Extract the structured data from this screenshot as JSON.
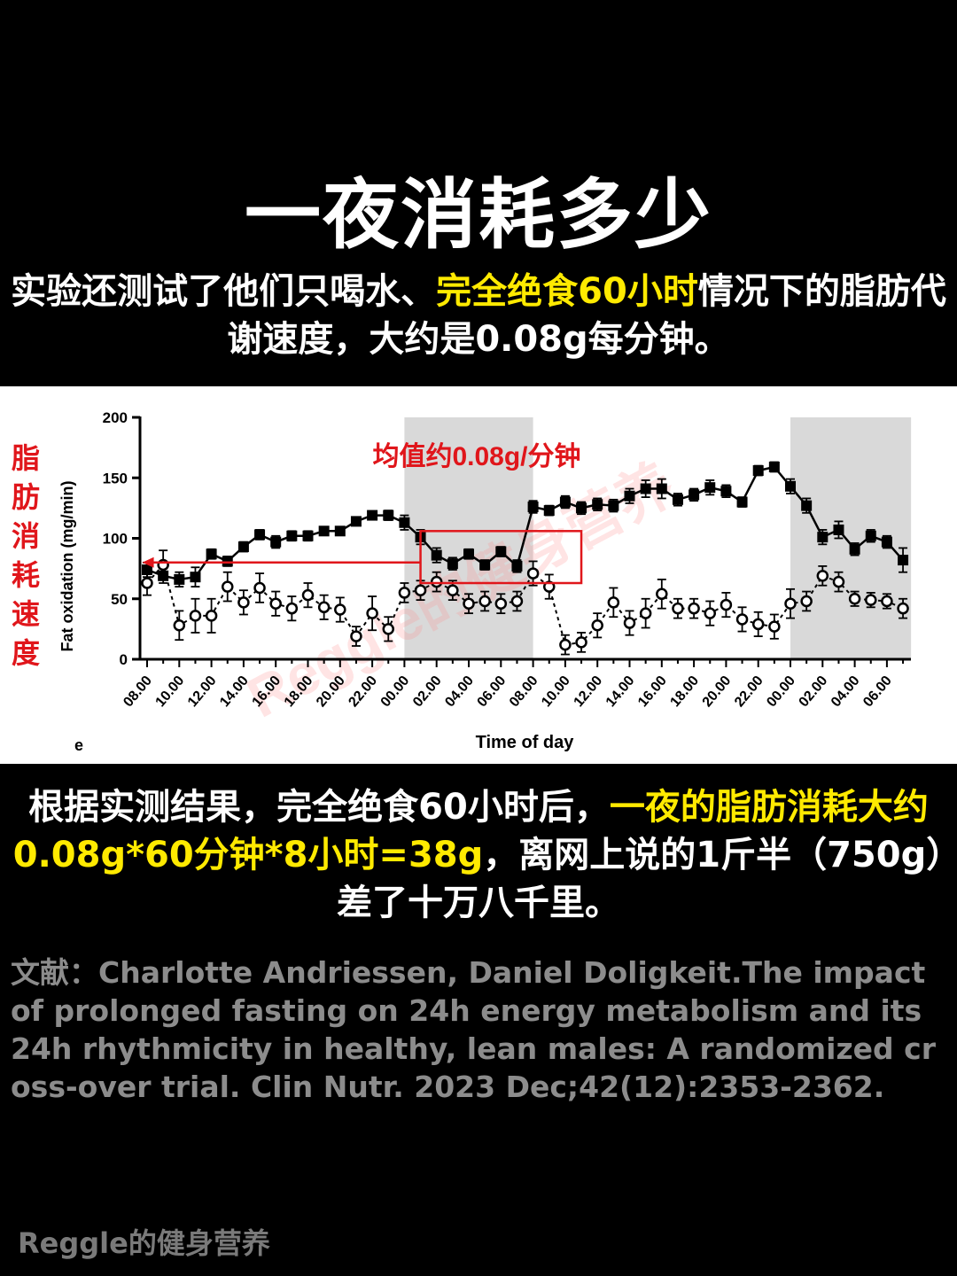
{
  "header": {
    "title": "一夜消耗多少",
    "intro_a": "实验还测试了他们只喝水、",
    "intro_highlight": "完全绝食60小时",
    "intro_b": "情况下的脂肪代谢速度，大约是0.08g每分钟。"
  },
  "chart_data": {
    "type": "line",
    "ylabel": "Fat oxidation (mg/min)",
    "xlabel": "Time of day",
    "panel_letter": "e",
    "ylim": [
      0,
      200
    ],
    "yticks": [
      0,
      50,
      100,
      150,
      200
    ],
    "xtick_labels": [
      "08.00",
      "10.00",
      "12.00",
      "14.00",
      "16.00",
      "18.00",
      "20.00",
      "22.00",
      "00.00",
      "02.00",
      "04.00",
      "06.00",
      "08.00",
      "10.00",
      "12.00",
      "14.00",
      "16.00",
      "18.00",
      "20.00",
      "22.00",
      "00.00",
      "02.00",
      "04.00",
      "06.00"
    ],
    "x_hours_elapsed_from_0800": [
      0,
      1,
      2,
      3,
      4,
      5,
      6,
      7,
      8,
      9,
      10,
      11,
      12,
      13,
      14,
      15,
      16,
      17,
      18,
      19,
      20,
      21,
      22,
      23,
      24,
      25,
      26,
      27,
      28,
      29,
      30,
      31,
      32,
      33,
      34,
      35,
      36,
      37,
      38,
      39,
      40,
      41,
      42,
      43,
      44,
      45,
      46,
      47
    ],
    "shaded_periods": [
      [
        16,
        24
      ],
      [
        40,
        47.5
      ]
    ],
    "series": [
      {
        "marker": "filled-square",
        "line": "solid",
        "color": "#000000",
        "values": [
          74,
          69,
          66,
          68,
          87,
          81,
          93,
          103,
          97,
          102,
          102,
          106,
          106,
          114,
          119,
          119,
          113,
          101,
          86,
          79,
          87,
          78,
          89,
          77,
          126,
          123,
          130,
          125,
          128,
          127,
          135,
          141,
          141,
          132,
          136,
          142,
          139,
          130,
          156,
          159,
          143,
          127,
          101,
          107,
          91,
          102,
          97,
          82
        ],
        "errors": [
          6,
          6,
          6,
          8,
          4,
          4,
          4,
          4,
          5,
          4,
          4,
          3,
          3,
          3,
          3,
          4,
          6,
          6,
          6,
          5,
          4,
          4,
          4,
          5,
          5,
          4,
          5,
          5,
          5,
          5,
          6,
          7,
          8,
          5,
          5,
          6,
          5,
          4,
          4,
          4,
          6,
          6,
          6,
          7,
          5,
          5,
          5,
          10
        ]
      },
      {
        "marker": "open-circle",
        "line": "dashed",
        "color": "#000000",
        "values": [
          63,
          78,
          28,
          36,
          36,
          60,
          47,
          59,
          46,
          42,
          53,
          43,
          41,
          19,
          38,
          25,
          55,
          57,
          64,
          57,
          46,
          48,
          46,
          48,
          71,
          60,
          12,
          14,
          28,
          47,
          30,
          38,
          54,
          42,
          42,
          38,
          45,
          33,
          29,
          27,
          46,
          48,
          69,
          64,
          50,
          49,
          48,
          42
        ],
        "errors": [
          10,
          12,
          12,
          14,
          14,
          12,
          10,
          12,
          10,
          10,
          10,
          10,
          10,
          8,
          14,
          10,
          8,
          8,
          8,
          8,
          8,
          8,
          8,
          8,
          10,
          10,
          8,
          8,
          10,
          12,
          10,
          12,
          12,
          8,
          8,
          10,
          10,
          10,
          10,
          10,
          12,
          8,
          8,
          8,
          6,
          6,
          6,
          8
        ]
      }
    ],
    "annotations": {
      "side_label": "脂肪消耗速度",
      "mean_label": "均值约0.08g/分钟",
      "mean_value": 80,
      "box_x_range": [
        17,
        27
      ],
      "box_y_range": [
        63,
        106
      ],
      "arrow_target_x": -0.3
    }
  },
  "summary": {
    "a": "根据实测结果，完全绝食60小时后，",
    "highlight": "一夜的脂肪消耗大约0.08g*60分钟*8小时=38g",
    "b": "，离网上说的1斤半（750g）差了十万八千里。"
  },
  "reference": "文献：Charlotte Andriessen, Daniel Doligkeit.The impact of prolonged fasting on 24h energy metabolism and its 24h rhythmicity in healthy, lean males: A randomized cross-over trial. Clin Nutr. 2023 Dec;42(12):2353-2362.",
  "watermark": "Reggle的健身营养",
  "brand": "Reggle的健身营养",
  "colors": {
    "highlight": "#ffea00",
    "annotation_red": "#e0161b",
    "shade": "#d9d9d9",
    "reference": "#8c8c8c"
  }
}
